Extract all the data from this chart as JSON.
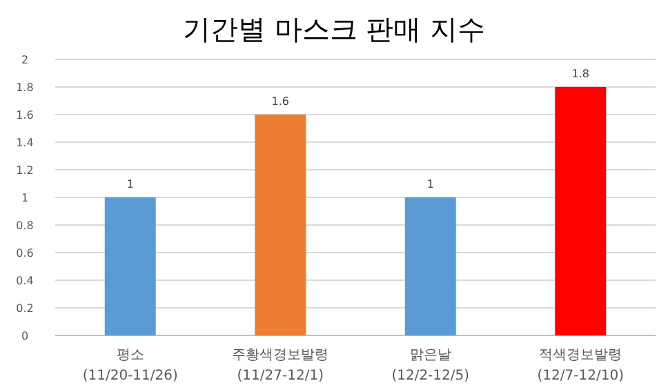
{
  "chart_data": {
    "type": "bar",
    "title": "기간별 마스크 판매 지수",
    "categories": [
      "평소\n(11/20-11/26)",
      "주황색경보발령\n(11/27-12/1)",
      "맑은날\n(12/2-12/5)",
      "적색경보발령\n(12/7-12/10)"
    ],
    "values": [
      1,
      1.6,
      1,
      1.8
    ],
    "colors": [
      "#5b9bd5",
      "#ed7d31",
      "#5b9bd5",
      "#ff0000"
    ],
    "ylim": [
      0,
      2
    ],
    "yticks": [
      0,
      0.2,
      0.4,
      0.6,
      0.8,
      1,
      1.2,
      1.4,
      1.6,
      1.8,
      2
    ],
    "grid": "y",
    "data_labels": true
  }
}
